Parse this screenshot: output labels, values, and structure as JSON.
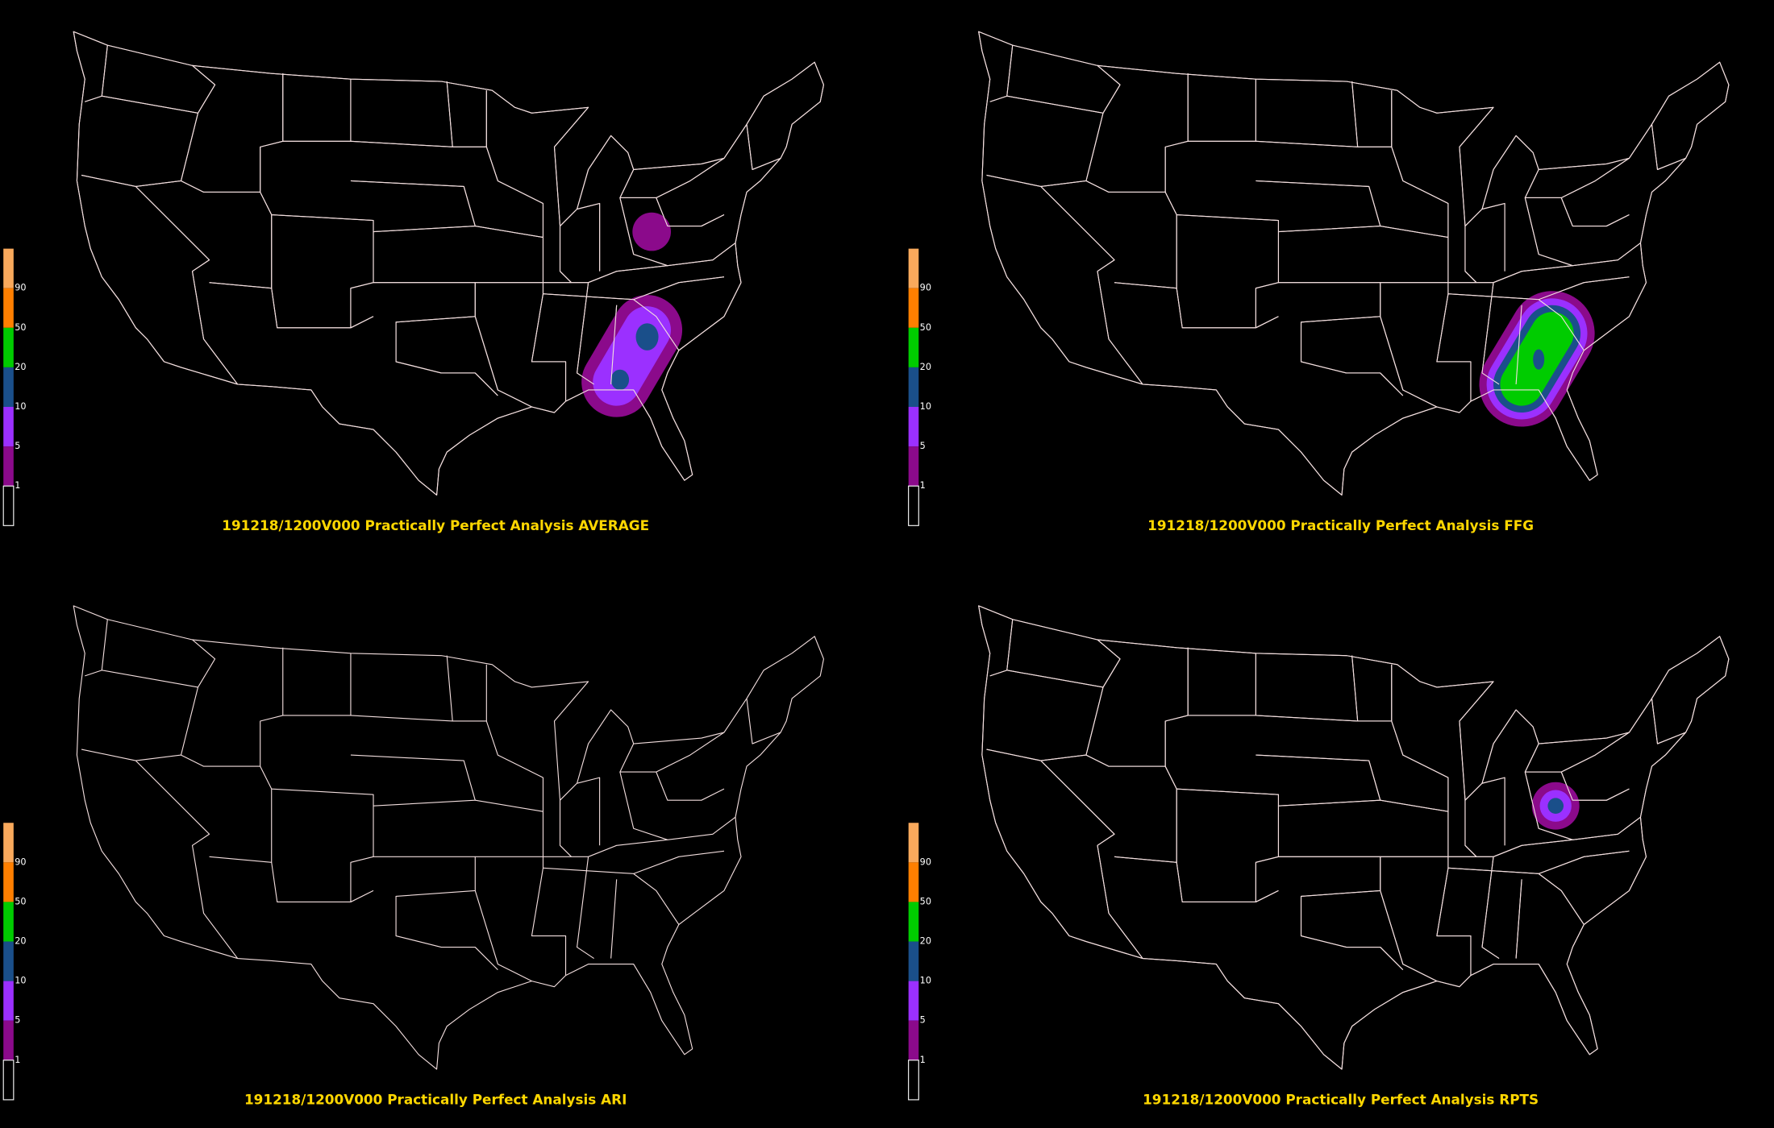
{
  "panels": [
    {
      "title": "191218/1200V000 Practically Perfect Analysis AVERAGE"
    },
    {
      "title": "191218/1200V000 Practically Perfect Analysis FFG"
    },
    {
      "title": "191218/1200V000 Practically Perfect Analysis ARI"
    },
    {
      "title": "191218/1200V000 Practically Perfect Analysis RPTS"
    }
  ],
  "legend": {
    "levels": [
      "90",
      "50",
      "20",
      "10",
      "5",
      "1"
    ]
  }
}
